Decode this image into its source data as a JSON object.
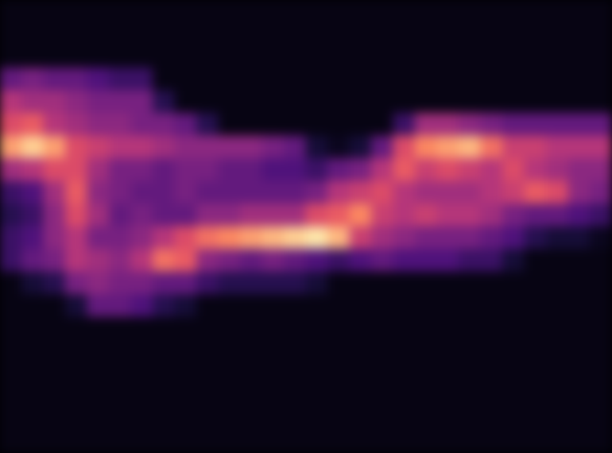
{
  "chart_data": {
    "type": "heatmap",
    "tick_labels": false,
    "zlim": [
      0,
      1
    ],
    "cells": [
      [
        0.03,
        0.03,
        0.03,
        0.03,
        0.03,
        0.03,
        0.03,
        0.03,
        0.03,
        0.03,
        0.03,
        0.03,
        0.03,
        0.03,
        0.03,
        0.03,
        0.03,
        0.03,
        0.03,
        0.03,
        0.03,
        0.03,
        0.03,
        0.03,
        0.03,
        0.03,
        0.03,
        0.03
      ],
      [
        0.03,
        0.03,
        0.03,
        0.03,
        0.03,
        0.03,
        0.03,
        0.03,
        0.03,
        0.03,
        0.03,
        0.03,
        0.03,
        0.03,
        0.03,
        0.03,
        0.03,
        0.03,
        0.03,
        0.03,
        0.03,
        0.03,
        0.03,
        0.03,
        0.03,
        0.03,
        0.03,
        0.03
      ],
      [
        0.03,
        0.03,
        0.03,
        0.03,
        0.03,
        0.03,
        0.03,
        0.03,
        0.03,
        0.03,
        0.03,
        0.03,
        0.03,
        0.03,
        0.03,
        0.03,
        0.03,
        0.03,
        0.03,
        0.03,
        0.03,
        0.03,
        0.03,
        0.03,
        0.03,
        0.03,
        0.03,
        0.03
      ],
      [
        0.3,
        0.35,
        0.3,
        0.3,
        0.25,
        0.2,
        0.2,
        0.03,
        0.03,
        0.03,
        0.03,
        0.03,
        0.03,
        0.03,
        0.03,
        0.03,
        0.03,
        0.03,
        0.03,
        0.03,
        0.03,
        0.03,
        0.03,
        0.03,
        0.03,
        0.03,
        0.03,
        0.03
      ],
      [
        0.5,
        0.45,
        0.45,
        0.4,
        0.35,
        0.35,
        0.35,
        0.15,
        0.03,
        0.03,
        0.03,
        0.03,
        0.03,
        0.03,
        0.03,
        0.03,
        0.03,
        0.03,
        0.03,
        0.03,
        0.03,
        0.03,
        0.03,
        0.03,
        0.03,
        0.03,
        0.03,
        0.03
      ],
      [
        0.6,
        0.65,
        0.5,
        0.45,
        0.4,
        0.4,
        0.35,
        0.35,
        0.3,
        0.15,
        0.03,
        0.03,
        0.03,
        0.03,
        0.03,
        0.03,
        0.03,
        0.03,
        0.2,
        0.45,
        0.45,
        0.4,
        0.35,
        0.3,
        0.3,
        0.3,
        0.3,
        0.3
      ],
      [
        0.8,
        0.9,
        0.8,
        0.6,
        0.55,
        0.5,
        0.5,
        0.45,
        0.4,
        0.4,
        0.4,
        0.4,
        0.35,
        0.3,
        0.1,
        0.05,
        0.1,
        0.3,
        0.6,
        0.75,
        0.8,
        0.85,
        0.7,
        0.55,
        0.55,
        0.5,
        0.5,
        0.5
      ],
      [
        0.45,
        0.5,
        0.6,
        0.6,
        0.45,
        0.35,
        0.35,
        0.3,
        0.35,
        0.35,
        0.3,
        0.3,
        0.25,
        0.25,
        0.2,
        0.3,
        0.35,
        0.5,
        0.65,
        0.55,
        0.6,
        0.55,
        0.5,
        0.6,
        0.5,
        0.45,
        0.4,
        0.4
      ],
      [
        0.2,
        0.25,
        0.45,
        0.65,
        0.4,
        0.35,
        0.3,
        0.3,
        0.35,
        0.3,
        0.3,
        0.3,
        0.3,
        0.3,
        0.35,
        0.5,
        0.55,
        0.6,
        0.5,
        0.45,
        0.45,
        0.45,
        0.5,
        0.55,
        0.65,
        0.6,
        0.4,
        0.35
      ],
      [
        0.15,
        0.2,
        0.4,
        0.6,
        0.45,
        0.3,
        0.35,
        0.3,
        0.3,
        0.4,
        0.4,
        0.45,
        0.45,
        0.45,
        0.6,
        0.65,
        0.75,
        0.55,
        0.5,
        0.55,
        0.5,
        0.5,
        0.45,
        0.35,
        0.3,
        0.3,
        0.25,
        0.2
      ],
      [
        0.2,
        0.25,
        0.4,
        0.5,
        0.35,
        0.35,
        0.4,
        0.5,
        0.6,
        0.7,
        0.75,
        0.8,
        0.85,
        0.9,
        0.95,
        0.85,
        0.55,
        0.45,
        0.4,
        0.35,
        0.35,
        0.35,
        0.3,
        0.25,
        0.15,
        0.1,
        0.1,
        0.05
      ],
      [
        0.2,
        0.3,
        0.35,
        0.5,
        0.45,
        0.4,
        0.5,
        0.7,
        0.65,
        0.4,
        0.35,
        0.3,
        0.35,
        0.3,
        0.25,
        0.2,
        0.25,
        0.3,
        0.25,
        0.25,
        0.25,
        0.2,
        0.2,
        0.1,
        0.03,
        0.03,
        0.03,
        0.03
      ],
      [
        0.03,
        0.1,
        0.15,
        0.35,
        0.4,
        0.35,
        0.35,
        0.3,
        0.3,
        0.2,
        0.15,
        0.15,
        0.15,
        0.15,
        0.1,
        0.03,
        0.03,
        0.03,
        0.03,
        0.03,
        0.03,
        0.03,
        0.03,
        0.03,
        0.03,
        0.03,
        0.03,
        0.03
      ],
      [
        0.03,
        0.03,
        0.03,
        0.1,
        0.3,
        0.3,
        0.25,
        0.15,
        0.1,
        0.03,
        0.03,
        0.03,
        0.03,
        0.03,
        0.03,
        0.03,
        0.03,
        0.03,
        0.03,
        0.03,
        0.03,
        0.03,
        0.03,
        0.03,
        0.03,
        0.03,
        0.03,
        0.03
      ],
      [
        0.03,
        0.03,
        0.03,
        0.03,
        0.03,
        0.03,
        0.03,
        0.03,
        0.03,
        0.03,
        0.03,
        0.03,
        0.03,
        0.03,
        0.03,
        0.03,
        0.03,
        0.03,
        0.03,
        0.03,
        0.03,
        0.03,
        0.03,
        0.03,
        0.03,
        0.03,
        0.03,
        0.03
      ],
      [
        0.03,
        0.03,
        0.03,
        0.03,
        0.03,
        0.03,
        0.03,
        0.03,
        0.03,
        0.03,
        0.03,
        0.03,
        0.03,
        0.03,
        0.03,
        0.03,
        0.03,
        0.03,
        0.03,
        0.03,
        0.03,
        0.03,
        0.03,
        0.03,
        0.03,
        0.03,
        0.03,
        0.03
      ],
      [
        0.03,
        0.03,
        0.03,
        0.03,
        0.03,
        0.03,
        0.03,
        0.03,
        0.03,
        0.03,
        0.03,
        0.03,
        0.03,
        0.03,
        0.03,
        0.03,
        0.03,
        0.03,
        0.03,
        0.03,
        0.03,
        0.03,
        0.03,
        0.03,
        0.03,
        0.03,
        0.03,
        0.03
      ],
      [
        0.03,
        0.03,
        0.03,
        0.03,
        0.03,
        0.03,
        0.03,
        0.03,
        0.03,
        0.03,
        0.03,
        0.03,
        0.03,
        0.03,
        0.03,
        0.03,
        0.03,
        0.03,
        0.03,
        0.03,
        0.03,
        0.03,
        0.03,
        0.03,
        0.03,
        0.03,
        0.03,
        0.03
      ],
      [
        0.03,
        0.03,
        0.03,
        0.03,
        0.03,
        0.03,
        0.03,
        0.03,
        0.03,
        0.03,
        0.03,
        0.03,
        0.03,
        0.03,
        0.03,
        0.03,
        0.03,
        0.03,
        0.03,
        0.03,
        0.03,
        0.03,
        0.03,
        0.03,
        0.03,
        0.03,
        0.03,
        0.03
      ],
      [
        0.03,
        0.03,
        0.03,
        0.03,
        0.03,
        0.03,
        0.03,
        0.03,
        0.03,
        0.03,
        0.03,
        0.03,
        0.03,
        0.03,
        0.03,
        0.03,
        0.03,
        0.03,
        0.03,
        0.03,
        0.03,
        0.03,
        0.03,
        0.03,
        0.03,
        0.03,
        0.03,
        0.03
      ]
    ]
  }
}
